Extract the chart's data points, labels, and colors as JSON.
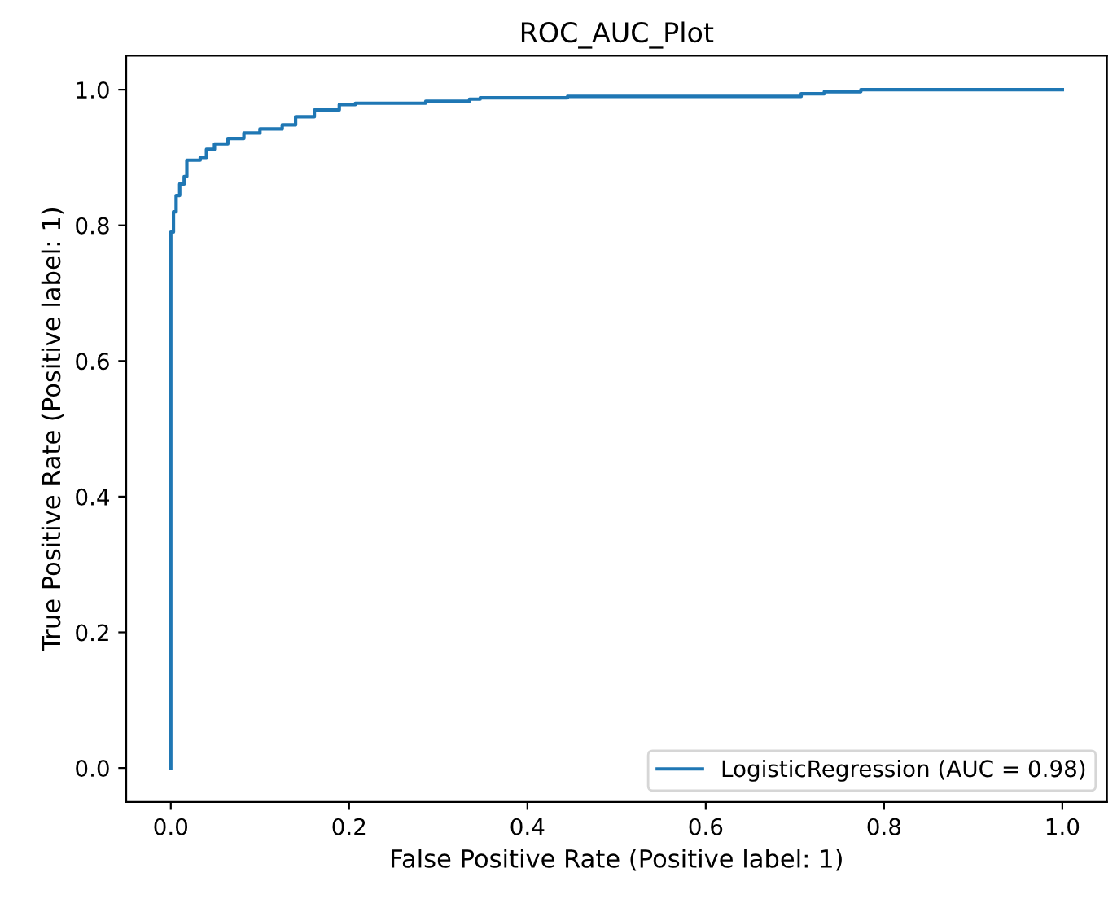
{
  "chart_data": {
    "type": "step",
    "title": "ROC_AUC_Plot",
    "xlabel": "False Positive Rate (Positive label: 1)",
    "ylabel": "True Positive Rate (Positive label: 1)",
    "series": [
      {
        "name": "LogisticRegression (AUC = 0.98)",
        "color": "#1f77b4",
        "x": [
          0,
          0,
          0.003,
          0.006,
          0.01,
          0.015,
          0.018,
          0.033,
          0.04,
          0.049,
          0.064,
          0.082,
          0.1,
          0.125,
          0.14,
          0.161,
          0.189,
          0.207,
          0.286,
          0.335,
          0.347,
          0.445,
          0.707,
          0.733,
          0.774,
          1.0
        ],
        "values": [
          0,
          0.79,
          0.82,
          0.844,
          0.861,
          0.872,
          0.896,
          0.9,
          0.912,
          0.92,
          0.928,
          0.936,
          0.942,
          0.948,
          0.96,
          0.97,
          0.978,
          0.98,
          0.983,
          0.986,
          0.988,
          0.99,
          0.994,
          0.997,
          1.0,
          1.0
        ]
      }
    ],
    "xlim": [
      -0.05,
      1.05
    ],
    "ylim": [
      -0.05,
      1.05
    ],
    "xticks": [
      {
        "value": 0,
        "label": "0.0"
      },
      0.2,
      0.4,
      0.6,
      0.8,
      {
        "value": 1,
        "label": "1.0"
      }
    ],
    "yticks": [
      {
        "value": 0,
        "label": "0.0"
      },
      0.2,
      0.4,
      0.6,
      0.8,
      {
        "value": 1,
        "label": "1.0"
      }
    ],
    "grid": false,
    "legend": "lower right",
    "line_style": "solid",
    "marker": "none"
  }
}
